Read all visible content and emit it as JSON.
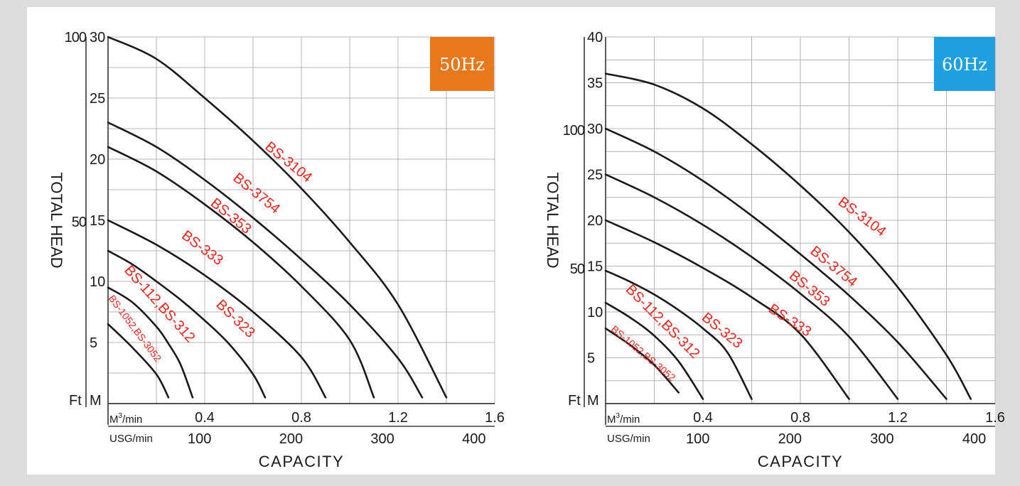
{
  "chart_data": [
    {
      "type": "line",
      "badge": "50Hz",
      "colors": {
        "badge": "#e8781c",
        "curve": "#1a1a1a",
        "label": "#e8241c",
        "grid": "#b4b4b4"
      },
      "ylabel": "TOTAL HEAD",
      "xlabel": "CAPACITY",
      "x_unit_primary": "M³/min",
      "x_unit_secondary": "USG/min",
      "y_unit_m": "M",
      "y_unit_ft": "Ft",
      "xlim": [
        0,
        1.6
      ],
      "ylim": [
        0,
        30
      ],
      "grid": true,
      "x_ticks_primary": [
        "0.4",
        "0.8",
        "1.2",
        "1.6"
      ],
      "x_ticks_primary_values": [
        0.4,
        0.8,
        1.2,
        1.6
      ],
      "x_ticks_secondary": [
        "100",
        "200",
        "300",
        "400"
      ],
      "x_ticks_secondary_values": [
        100,
        200,
        300,
        400
      ],
      "y_ticks_m": [
        "5",
        "10",
        "15",
        "20",
        "25",
        "30"
      ],
      "y_ticks_m_values": [
        5,
        10,
        15,
        20,
        25,
        30
      ],
      "y_ticks_ft": [
        "50",
        "100"
      ],
      "y_ticks_ft_values": [
        50,
        100
      ],
      "series": [
        {
          "name": "BS-3104",
          "x": [
            0,
            0.2,
            0.4,
            0.6,
            0.8,
            1.0,
            1.2,
            1.4
          ],
          "y": [
            30,
            28.2,
            25,
            21.5,
            17.6,
            13.2,
            8.1,
            0.5
          ]
        },
        {
          "name": "BS-3754",
          "x": [
            0,
            0.2,
            0.4,
            0.6,
            0.8,
            1.0,
            1.2,
            1.3
          ],
          "y": [
            23,
            21,
            18.3,
            15.2,
            11.8,
            8.1,
            3.7,
            0.5
          ]
        },
        {
          "name": "BS-353",
          "x": [
            0,
            0.2,
            0.4,
            0.6,
            0.8,
            1.0,
            1.1
          ],
          "y": [
            21,
            19,
            16.3,
            13.2,
            9.6,
            5.2,
            0.5
          ]
        },
        {
          "name": "BS-333",
          "x": [
            0,
            0.2,
            0.4,
            0.6,
            0.8,
            0.9
          ],
          "y": [
            15,
            13,
            10.5,
            7.5,
            3.8,
            0.5
          ]
        },
        {
          "name": "BS-323",
          "x": [
            0,
            0.1,
            0.2,
            0.3,
            0.4,
            0.5,
            0.6,
            0.65
          ],
          "y": [
            12.5,
            11.4,
            10,
            8.5,
            6.8,
            4.9,
            2.4,
            0.5
          ]
        },
        {
          "name": "BS-112,BS-312",
          "x": [
            0,
            0.1,
            0.2,
            0.25,
            0.3,
            0.35
          ],
          "y": [
            9.5,
            8.3,
            6.3,
            4.9,
            3.2,
            0.5
          ]
        },
        {
          "name": "BS-1052,BS-3052",
          "x": [
            0,
            0.1,
            0.2,
            0.25
          ],
          "y": [
            6.5,
            4.6,
            2.4,
            0.5
          ]
        }
      ]
    },
    {
      "type": "line",
      "badge": "60Hz",
      "colors": {
        "badge": "#1ea0e0",
        "curve": "#1a1a1a",
        "label": "#e8241c",
        "grid": "#b4b4b4"
      },
      "ylabel": "TOTAL HEAD",
      "xlabel": "CAPACITY",
      "x_unit_primary": "M³/min",
      "x_unit_secondary": "USG/min",
      "y_unit_m": "M",
      "y_unit_ft": "Ft",
      "xlim": [
        0,
        1.6
      ],
      "ylim": [
        0,
        40
      ],
      "grid": true,
      "x_ticks_primary": [
        "0.4",
        "0.8",
        "1.2",
        "1.6"
      ],
      "x_ticks_primary_values": [
        0.4,
        0.8,
        1.2,
        1.6
      ],
      "x_ticks_secondary": [
        "100",
        "200",
        "300",
        "400"
      ],
      "x_ticks_secondary_values": [
        100,
        200,
        300,
        400
      ],
      "y_ticks_m": [
        "5",
        "10",
        "15",
        "20",
        "25",
        "30",
        "35",
        "40"
      ],
      "y_ticks_m_values": [
        5,
        10,
        15,
        20,
        25,
        30,
        35,
        40
      ],
      "y_ticks_ft": [
        "50",
        "100"
      ],
      "y_ticks_ft_values": [
        50,
        100
      ],
      "series": [
        {
          "name": "BS-3104",
          "x": [
            0,
            0.2,
            0.4,
            0.6,
            0.8,
            1.0,
            1.2,
            1.4,
            1.5
          ],
          "y": [
            36,
            34.8,
            32.2,
            28.3,
            23.8,
            18.7,
            12.7,
            5.3,
            0.5
          ]
        },
        {
          "name": "BS-3754",
          "x": [
            0,
            0.2,
            0.4,
            0.6,
            0.8,
            1.0,
            1.2,
            1.4
          ],
          "y": [
            30,
            27.5,
            24.3,
            20.5,
            16.3,
            11.8,
            6.7,
            0.5
          ]
        },
        {
          "name": "BS-353",
          "x": [
            0,
            0.2,
            0.4,
            0.6,
            0.8,
            1.0,
            1.2
          ],
          "y": [
            25,
            22.5,
            19.5,
            16,
            12,
            7.3,
            0.5
          ]
        },
        {
          "name": "BS-333",
          "x": [
            0,
            0.2,
            0.4,
            0.6,
            0.8,
            1.0
          ],
          "y": [
            20,
            17.6,
            14.8,
            11.6,
            7.6,
            0.5
          ]
        },
        {
          "name": "BS-323",
          "x": [
            0,
            0.1,
            0.2,
            0.3,
            0.4,
            0.5,
            0.6
          ],
          "y": [
            14.5,
            13.3,
            11.9,
            10.2,
            8.2,
            5.6,
            0.5
          ]
        },
        {
          "name": "BS-112,BS-312",
          "x": [
            0,
            0.1,
            0.2,
            0.3,
            0.4
          ],
          "y": [
            11,
            9.4,
            7.4,
            4.6,
            0.5
          ]
        },
        {
          "name": "BS-1052,BS-3052",
          "x": [
            0,
            0.1,
            0.2,
            0.3
          ],
          "y": [
            8.2,
            6.4,
            4.2,
            1.2
          ]
        }
      ]
    }
  ]
}
